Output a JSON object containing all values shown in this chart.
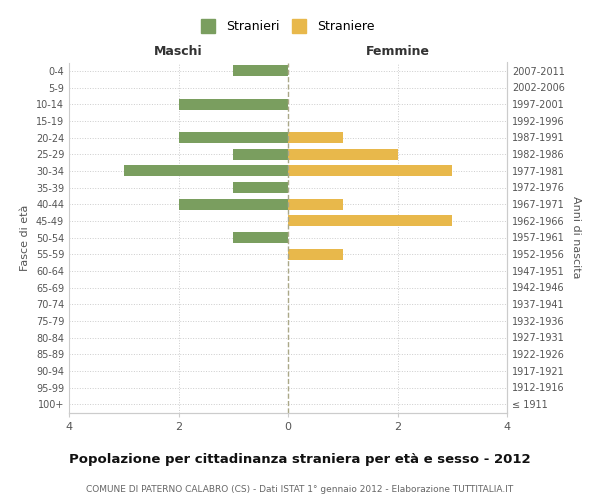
{
  "age_groups": [
    "100+",
    "95-99",
    "90-94",
    "85-89",
    "80-84",
    "75-79",
    "70-74",
    "65-69",
    "60-64",
    "55-59",
    "50-54",
    "45-49",
    "40-44",
    "35-39",
    "30-34",
    "25-29",
    "20-24",
    "15-19",
    "10-14",
    "5-9",
    "0-4"
  ],
  "birth_years": [
    "≤ 1911",
    "1912-1916",
    "1917-1921",
    "1922-1926",
    "1927-1931",
    "1932-1936",
    "1937-1941",
    "1942-1946",
    "1947-1951",
    "1952-1956",
    "1957-1961",
    "1962-1966",
    "1967-1971",
    "1972-1976",
    "1977-1981",
    "1982-1986",
    "1987-1991",
    "1992-1996",
    "1997-2001",
    "2002-2006",
    "2007-2011"
  ],
  "maschi": [
    0,
    0,
    0,
    0,
    0,
    0,
    0,
    0,
    0,
    0,
    1,
    0,
    2,
    1,
    3,
    1,
    2,
    0,
    2,
    0,
    1
  ],
  "femmine": [
    0,
    0,
    0,
    0,
    0,
    0,
    0,
    0,
    0,
    1,
    0,
    3,
    1,
    0,
    3,
    2,
    1,
    0,
    0,
    0,
    0
  ],
  "color_maschi": "#7a9e5f",
  "color_femmine": "#e8b84b",
  "title": "Popolazione per cittadinanza straniera per età e sesso - 2012",
  "subtitle": "COMUNE DI PATERNO CALABRO (CS) - Dati ISTAT 1° gennaio 2012 - Elaborazione TUTTITALIA.IT",
  "xlabel_left": "Maschi",
  "xlabel_right": "Femmine",
  "ylabel_left": "Fasce di età",
  "ylabel_right": "Anni di nascita",
  "legend_maschi": "Stranieri",
  "legend_femmine": "Straniere",
  "xlim": 4,
  "background_color": "#ffffff",
  "grid_color": "#cccccc",
  "spine_color": "#cccccc"
}
